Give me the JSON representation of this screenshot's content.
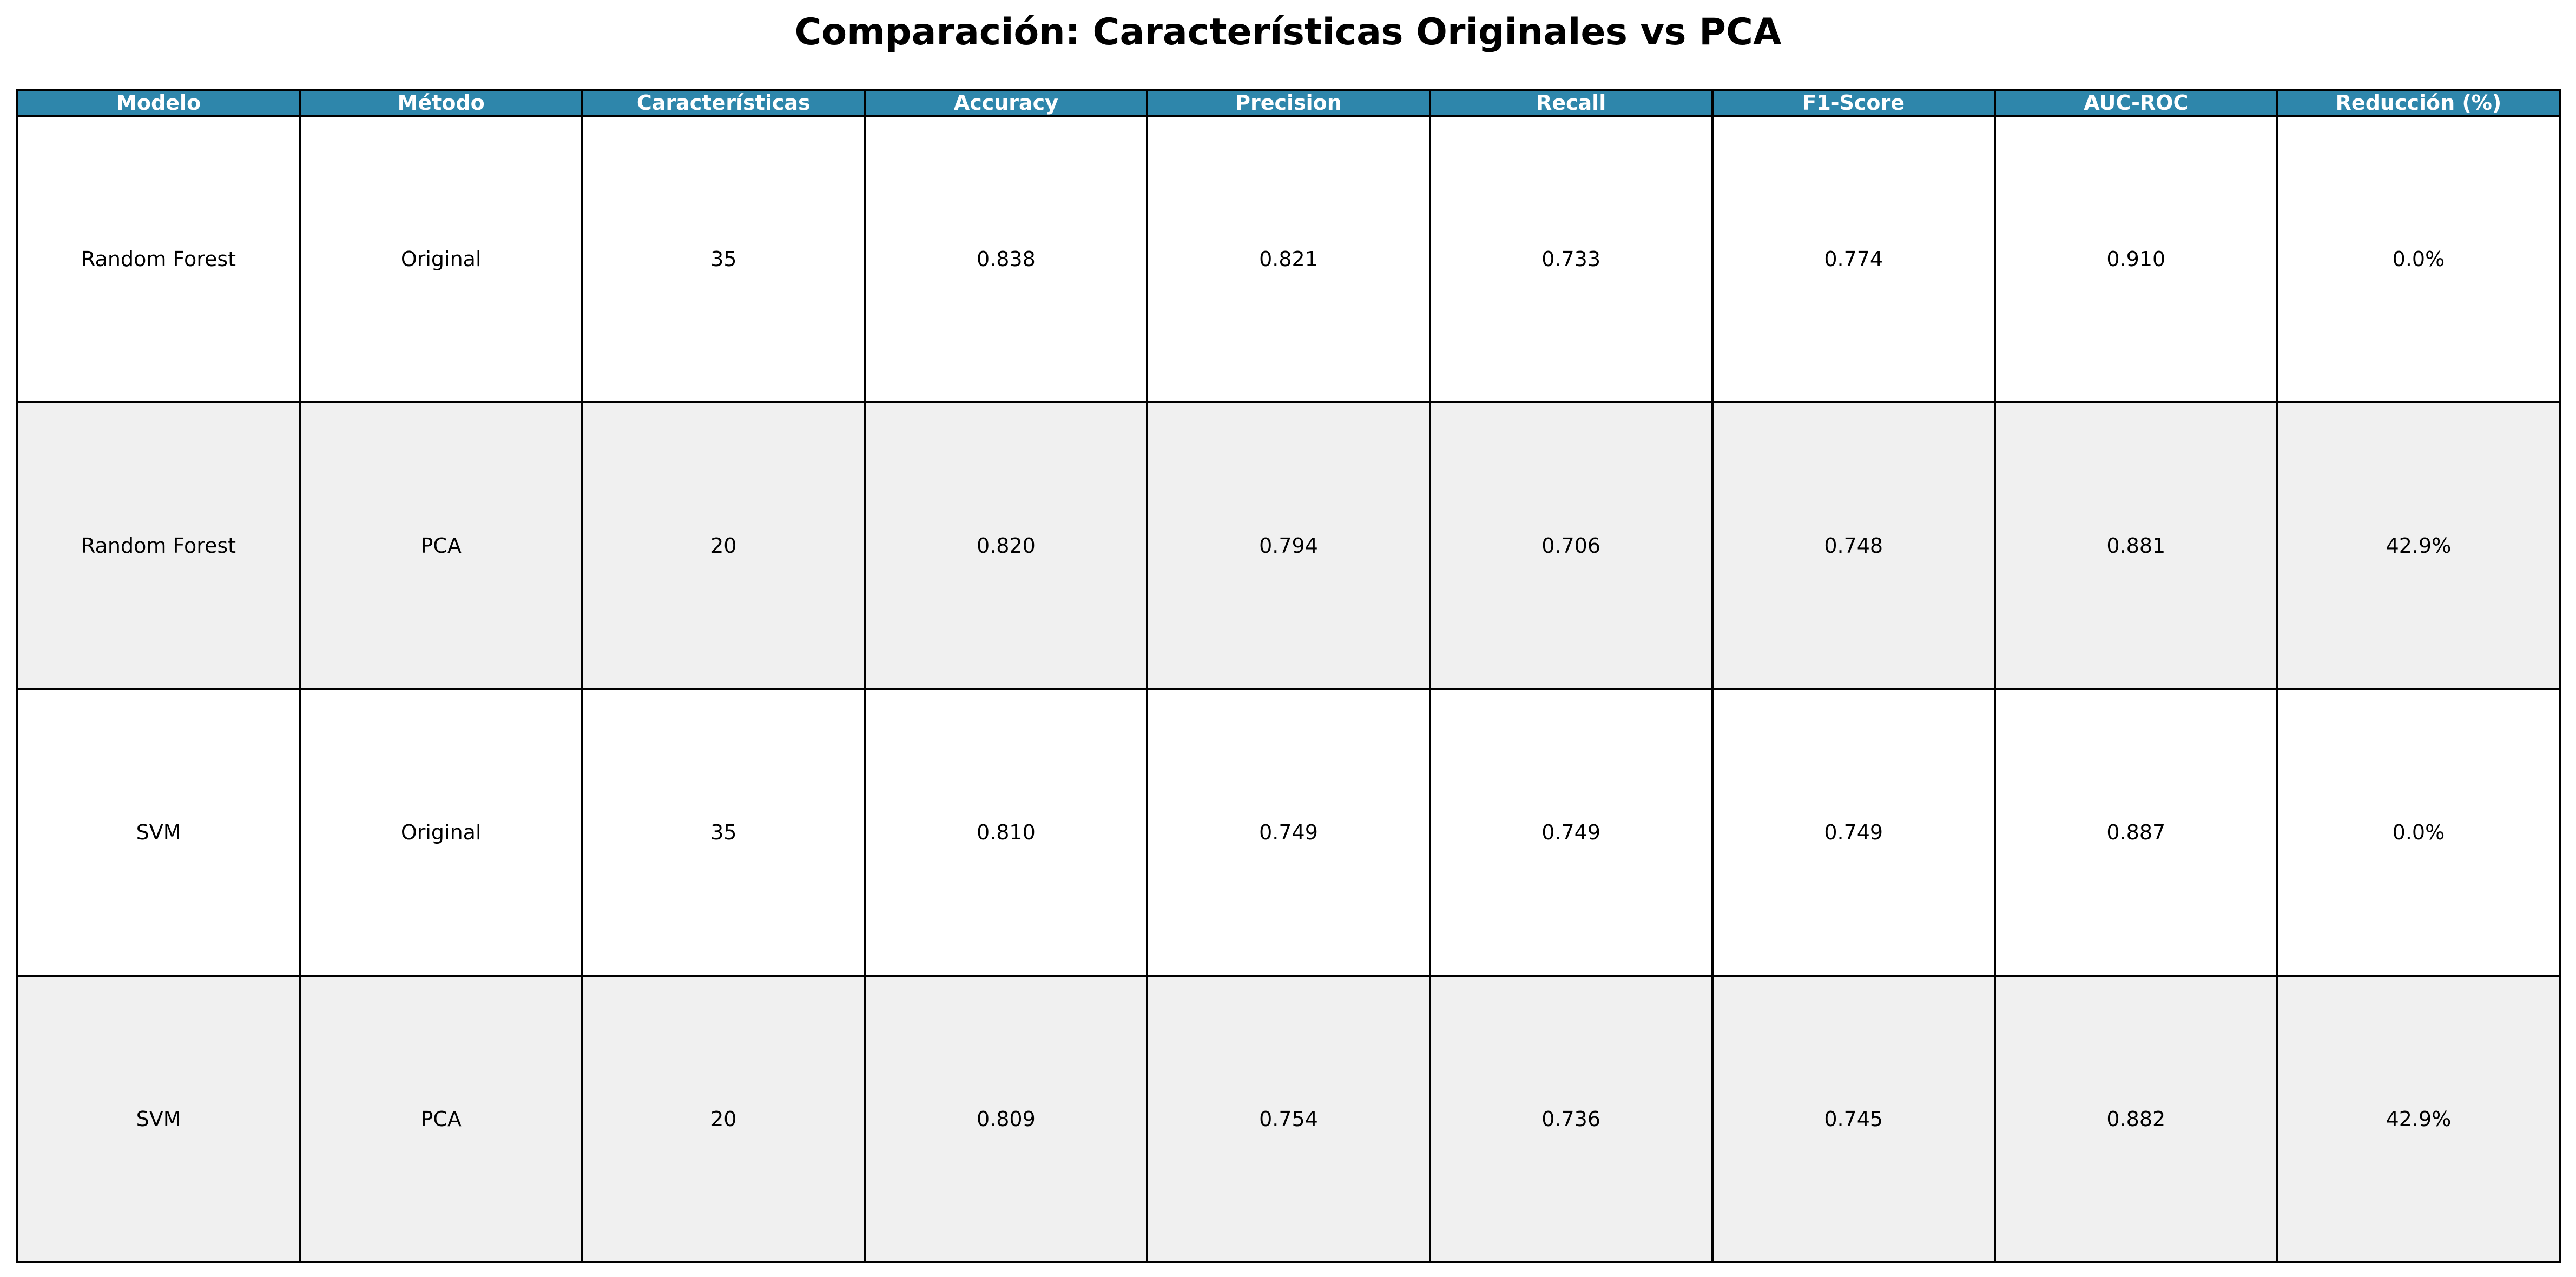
{
  "chart_data": {
    "type": "table",
    "title": "Comparación: Características Originales vs PCA",
    "header_color": "#2E86AB",
    "row_colors": [
      "#ffffff",
      "#f0f0f0"
    ],
    "columns": [
      "Modelo",
      "Método",
      "Características",
      "Accuracy",
      "Precision",
      "Recall",
      "F1-Score",
      "AUC-ROC",
      "Reducción (%)"
    ],
    "rows": [
      [
        "Random Forest",
        "Original",
        "35",
        "0.838",
        "0.821",
        "0.733",
        "0.774",
        "0.910",
        "0.0%"
      ],
      [
        "Random Forest",
        "PCA",
        "20",
        "0.820",
        "0.794",
        "0.706",
        "0.748",
        "0.881",
        "42.9%"
      ],
      [
        "SVM",
        "Original",
        "35",
        "0.810",
        "0.749",
        "0.749",
        "0.749",
        "0.887",
        "0.0%"
      ],
      [
        "SVM",
        "PCA",
        "20",
        "0.809",
        "0.754",
        "0.736",
        "0.745",
        "0.882",
        "42.9%"
      ]
    ]
  }
}
